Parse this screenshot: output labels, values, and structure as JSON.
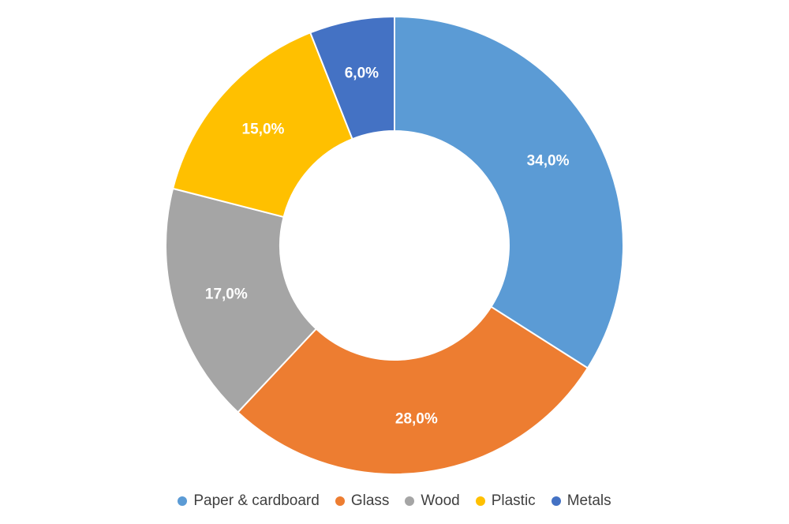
{
  "chart_data": {
    "type": "pie",
    "variant": "donut",
    "start_angle_deg": 0,
    "direction": "clockwise",
    "categories": [
      "Paper & cardboard",
      "Glass",
      "Wood",
      "Plastic",
      "Metals"
    ],
    "values": [
      34.0,
      28.0,
      17.0,
      15.0,
      6.0
    ],
    "data_labels": [
      "34,0%",
      "28,0%",
      "17,0%",
      "15,0%",
      "6,0%"
    ],
    "colors": [
      "#5B9BD5",
      "#ED7D31",
      "#A5A5A5",
      "#FFC000",
      "#4472C4"
    ],
    "title": "",
    "legend_position": "bottom",
    "legend": [
      "Paper & cardboard",
      "Glass",
      "Wood",
      "Plastic",
      "Metals"
    ]
  }
}
